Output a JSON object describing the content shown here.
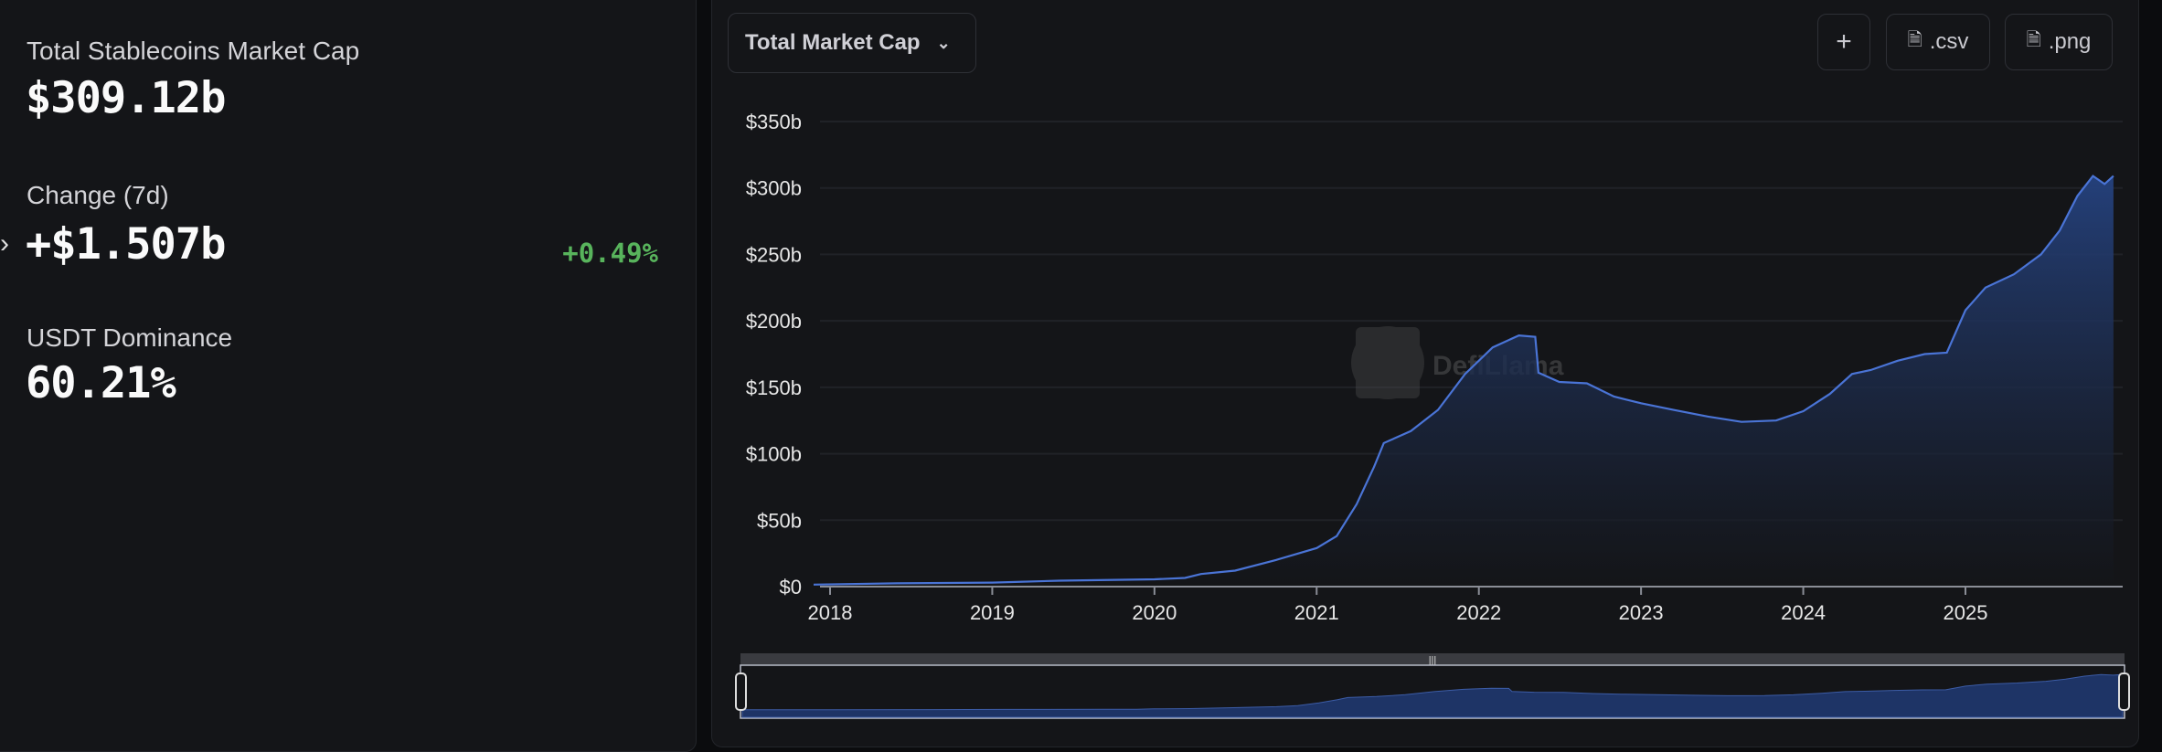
{
  "stats": {
    "total_label": "Total Stablecoins Market Cap",
    "total_value": "$309.12b",
    "change_label": "Change (7d)",
    "change_value": "+$1.507b",
    "change_percent": "+0.49%",
    "dominance_label": "USDT Dominance",
    "dominance_value": "60.21%"
  },
  "toolbar": {
    "dropdown_label": "Total Market Cap",
    "add_label": "+",
    "csv_label": ".csv",
    "png_label": ".png"
  },
  "watermark": "DefiLlama",
  "colors": {
    "line": "#4a74d6",
    "fill_top": "#25427f",
    "positive": "#58b45c"
  },
  "chart_data": {
    "type": "area",
    "title": "",
    "xlabel": "",
    "ylabel": "",
    "ylim": [
      0,
      350
    ],
    "y_ticks": [
      "$0",
      "$50b",
      "$100b",
      "$150b",
      "$200b",
      "$250b",
      "$300b",
      "$350b"
    ],
    "x_ticks": [
      "2018",
      "2019",
      "2020",
      "2021",
      "2022",
      "2023",
      "2024",
      "2025"
    ],
    "grid": true,
    "unit": "billions USD",
    "x": [
      "2017-11-25",
      "2018-06-01",
      "2019-01-01",
      "2019-06-01",
      "2020-01-01",
      "2020-03-10",
      "2020-04-15",
      "2020-07-01",
      "2020-10-01",
      "2021-01-01",
      "2021-02-15",
      "2021-04-01",
      "2021-05-10",
      "2021-06-01",
      "2021-08-01",
      "2021-10-01",
      "2021-12-01",
      "2022-02-01",
      "2022-04-01",
      "2022-05-08",
      "2022-05-15",
      "2022-07-01",
      "2022-09-01",
      "2022-11-01",
      "2023-01-01",
      "2023-03-15",
      "2023-06-01",
      "2023-08-15",
      "2023-11-01",
      "2024-01-01",
      "2024-03-01",
      "2024-04-20",
      "2024-06-01",
      "2024-08-01",
      "2024-10-01",
      "2024-11-20",
      "2025-01-01",
      "2025-02-15",
      "2025-04-20",
      "2025-06-20",
      "2025-08-01",
      "2025-09-10",
      "2025-10-15",
      "2025-11-10",
      "2025-11-30"
    ],
    "values": [
      1.5,
      2.5,
      3,
      4.5,
      5.5,
      6.5,
      9.5,
      12,
      20,
      29,
      38,
      62,
      90,
      108,
      117,
      133,
      160,
      180,
      189,
      188,
      161,
      154,
      153,
      143,
      138,
      133,
      128,
      124,
      125,
      132,
      145,
      160,
      163,
      170,
      175,
      176,
      208,
      225,
      235,
      250,
      268,
      294,
      309,
      303,
      309
    ]
  }
}
